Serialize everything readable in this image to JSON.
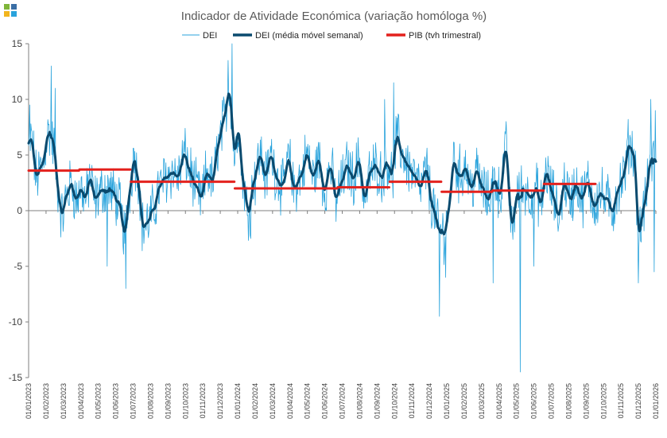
{
  "logo": {
    "colors": [
      "#7fb539",
      "#f2b51e",
      "#3a6ea5",
      "#29a3dc"
    ]
  },
  "chart_data": {
    "type": "line",
    "title": "Indicador de Atividade Económica (variação homóloga %)",
    "ylim": [
      -15,
      15
    ],
    "yticks": [
      -15,
      -10,
      -5,
      0,
      5,
      10,
      15
    ],
    "grid": false,
    "legend_position": "top-center",
    "x_start": "2023-01-01",
    "x_end": "2026-01-15",
    "xtick_labels": [
      "01/01/2023",
      "01/02/2023",
      "01/03/2023",
      "01/04/2023",
      "01/05/2023",
      "01/06/2023",
      "01/07/2023",
      "01/08/2023",
      "01/09/2023",
      "01/10/2023",
      "01/11/2023",
      "01/12/2023",
      "01/01/2024",
      "01/02/2024",
      "01/03/2024",
      "01/04/2024",
      "01/05/2024",
      "01/06/2024",
      "01/07/2024",
      "01/08/2024",
      "01/09/2024",
      "01/10/2024",
      "01/11/2024",
      "01/12/2024",
      "01/01/2025",
      "01/02/2025",
      "01/03/2025",
      "01/04/2025",
      "01/05/2025",
      "01/06/2025",
      "01/07/2025",
      "01/08/2025",
      "01/09/2025",
      "01/10/2025",
      "01/11/2025",
      "01/12/2025",
      "01/01/2026"
    ],
    "series": [
      {
        "name": "DEI",
        "color": "#29a3dc",
        "style": "thin-line",
        "sampling": "daily",
        "anchors": [
          [
            "2023-01-01",
            5.5
          ],
          [
            "2023-01-06",
            6.5
          ],
          [
            "2023-01-15",
            3.0
          ],
          [
            "2023-01-25",
            4.0
          ],
          [
            "2023-02-05",
            7.0
          ],
          [
            "2023-02-14",
            6.0
          ],
          [
            "2023-02-22",
            2.0
          ],
          [
            "2023-03-01",
            -0.5
          ],
          [
            "2023-03-10",
            1.5
          ],
          [
            "2023-03-18",
            2.5
          ],
          [
            "2023-03-26",
            1.0
          ],
          [
            "2023-04-04",
            2.0
          ],
          [
            "2023-04-12",
            1.0
          ],
          [
            "2023-04-20",
            3.0
          ],
          [
            "2023-04-28",
            1.0
          ],
          [
            "2023-05-06",
            1.5
          ],
          [
            "2023-05-14",
            2.0
          ],
          [
            "2023-05-22",
            2.0
          ],
          [
            "2023-06-01",
            1.5
          ],
          [
            "2023-06-10",
            0.5
          ],
          [
            "2023-06-20",
            -2.0
          ],
          [
            "2023-06-30",
            2.0
          ],
          [
            "2023-07-06",
            5.0
          ],
          [
            "2023-07-14",
            3.0
          ],
          [
            "2023-07-22",
            -1.5
          ],
          [
            "2023-08-01",
            -1.0
          ],
          [
            "2023-08-10",
            0.0
          ],
          [
            "2023-08-20",
            2.0
          ],
          [
            "2023-09-01",
            3.0
          ],
          [
            "2023-09-12",
            3.5
          ],
          [
            "2023-09-22",
            3.0
          ],
          [
            "2023-10-04",
            5.0
          ],
          [
            "2023-10-14",
            3.5
          ],
          [
            "2023-10-24",
            2.0
          ],
          [
            "2023-11-03",
            1.0
          ],
          [
            "2023-11-13",
            3.5
          ],
          [
            "2023-11-23",
            2.5
          ],
          [
            "2023-12-03",
            6.0
          ],
          [
            "2023-12-13",
            8.0
          ],
          [
            "2023-12-22",
            11.0
          ],
          [
            "2024-01-01",
            5.0
          ],
          [
            "2024-01-08",
            8.0
          ],
          [
            "2024-01-14",
            3.0
          ],
          [
            "2024-01-25",
            0.0
          ],
          [
            "2024-02-05",
            3.0
          ],
          [
            "2024-02-15",
            5.0
          ],
          [
            "2024-02-25",
            3.0
          ],
          [
            "2024-03-05",
            5.0
          ],
          [
            "2024-03-16",
            3.0
          ],
          [
            "2024-03-26",
            2.0
          ],
          [
            "2024-04-05",
            4.5
          ],
          [
            "2024-04-15",
            2.0
          ],
          [
            "2024-04-26",
            3.0
          ],
          [
            "2024-05-08",
            5.0
          ],
          [
            "2024-05-18",
            3.0
          ],
          [
            "2024-05-28",
            4.5
          ],
          [
            "2024-06-08",
            2.0
          ],
          [
            "2024-06-18",
            4.0
          ],
          [
            "2024-06-28",
            1.0
          ],
          [
            "2024-07-08",
            2.5
          ],
          [
            "2024-07-18",
            4.0
          ],
          [
            "2024-07-28",
            3.0
          ],
          [
            "2024-08-08",
            4.5
          ],
          [
            "2024-08-18",
            1.0
          ],
          [
            "2024-08-28",
            3.5
          ],
          [
            "2024-09-08",
            4.0
          ],
          [
            "2024-09-18",
            3.0
          ],
          [
            "2024-09-28",
            4.5
          ],
          [
            "2024-10-05",
            3.0
          ],
          [
            "2024-10-14",
            6.5
          ],
          [
            "2024-10-24",
            5.0
          ],
          [
            "2024-11-03",
            4.0
          ],
          [
            "2024-11-14",
            3.0
          ],
          [
            "2024-11-24",
            2.0
          ],
          [
            "2024-12-05",
            3.5
          ],
          [
            "2024-12-16",
            0.5
          ],
          [
            "2024-12-25",
            -1.5
          ],
          [
            "2025-01-05",
            -2.0
          ],
          [
            "2025-01-14",
            0.0
          ],
          [
            "2025-01-22",
            4.5
          ],
          [
            "2025-02-02",
            3.0
          ],
          [
            "2025-02-12",
            4.0
          ],
          [
            "2025-02-22",
            2.0
          ],
          [
            "2025-03-04",
            3.5
          ],
          [
            "2025-03-14",
            2.0
          ],
          [
            "2025-03-24",
            1.0
          ],
          [
            "2025-04-04",
            3.0
          ],
          [
            "2025-04-14",
            1.5
          ],
          [
            "2025-04-25",
            5.5
          ],
          [
            "2025-05-05",
            -1.5
          ],
          [
            "2025-05-15",
            1.5
          ],
          [
            "2025-05-26",
            2.0
          ],
          [
            "2025-06-06",
            1.5
          ],
          [
            "2025-06-16",
            2.0
          ],
          [
            "2025-06-26",
            0.5
          ],
          [
            "2025-07-05",
            3.5
          ],
          [
            "2025-07-16",
            1.5
          ],
          [
            "2025-07-27",
            -0.5
          ],
          [
            "2025-08-06",
            2.5
          ],
          [
            "2025-08-17",
            1.0
          ],
          [
            "2025-08-27",
            2.5
          ],
          [
            "2025-09-06",
            1.0
          ],
          [
            "2025-09-17",
            2.5
          ],
          [
            "2025-09-28",
            0.5
          ],
          [
            "2025-10-08",
            1.5
          ],
          [
            "2025-10-19",
            1.0
          ],
          [
            "2025-10-30",
            0.0
          ],
          [
            "2025-11-09",
            2.0
          ],
          [
            "2025-11-19",
            3.0
          ],
          [
            "2025-11-29",
            6.0
          ],
          [
            "2025-12-08",
            5.0
          ],
          [
            "2025-12-16",
            -2.0
          ],
          [
            "2025-12-26",
            0.5
          ],
          [
            "2026-01-05",
            4.0
          ],
          [
            "2026-01-15",
            5.0
          ]
        ],
        "spikes": [
          [
            "2023-01-03",
            9.5
          ],
          [
            "2023-02-10",
            13.0
          ],
          [
            "2023-02-17",
            11.0
          ],
          [
            "2023-05-20",
            -5.0
          ],
          [
            "2023-06-22",
            -7.0
          ],
          [
            "2023-12-20",
            13.5
          ],
          [
            "2023-12-27",
            15.0
          ],
          [
            "2024-01-29",
            -2.5
          ],
          [
            "2024-09-22",
            10.0
          ],
          [
            "2024-10-08",
            11.5
          ],
          [
            "2024-12-28",
            -9.5
          ],
          [
            "2025-01-08",
            -6.0
          ],
          [
            "2025-02-02",
            6.0
          ],
          [
            "2025-04-02",
            -6.5
          ],
          [
            "2025-05-20",
            -14.5
          ],
          [
            "2025-06-13",
            -5.0
          ],
          [
            "2025-12-15",
            -6.5
          ],
          [
            "2026-01-06",
            10.0
          ],
          [
            "2026-01-12",
            -5.5
          ],
          [
            "2026-01-14",
            9.0
          ]
        ]
      },
      {
        "name": "DEI (média móvel semanal)",
        "color": "#0a4a6e",
        "style": "thick-line",
        "smoothing_window_days": 7
      },
      {
        "name": "PIB (tvh trimestral)",
        "color": "#e3211d",
        "style": "thick-step",
        "segments": [
          {
            "from": "2023-01-01",
            "to": "2023-03-31",
            "value": 3.6
          },
          {
            "from": "2023-04-01",
            "to": "2023-06-30",
            "value": 3.7
          },
          {
            "from": "2023-07-01",
            "to": "2023-12-31",
            "value": 2.6
          },
          {
            "from": "2024-01-01",
            "to": "2024-06-30",
            "value": 2.0
          },
          {
            "from": "2024-07-01",
            "to": "2024-09-30",
            "value": 2.1
          },
          {
            "from": "2024-10-01",
            "to": "2024-12-31",
            "value": 2.6
          },
          {
            "from": "2025-01-01",
            "to": "2025-03-31",
            "value": 1.7
          },
          {
            "from": "2025-04-01",
            "to": "2025-06-30",
            "value": 1.8
          },
          {
            "from": "2025-07-01",
            "to": "2025-09-30",
            "value": 2.4
          }
        ]
      }
    ]
  }
}
